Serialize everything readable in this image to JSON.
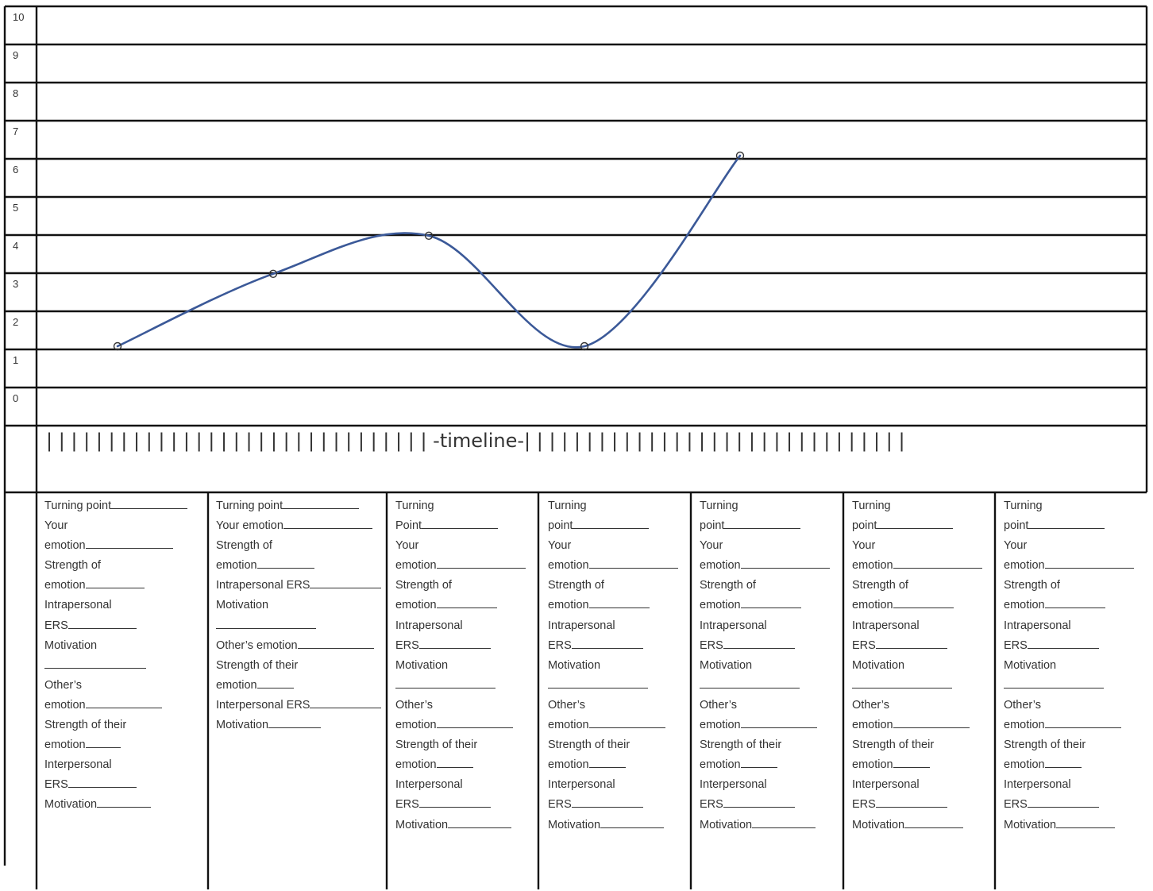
{
  "chart_data": {
    "type": "line",
    "ylim": [
      0,
      10
    ],
    "y_ticks": [
      "10",
      "9",
      "8",
      "7",
      "6",
      "5",
      "4",
      "3",
      "2",
      "1",
      "0"
    ],
    "series": [
      {
        "points": [
          [
            0,
            2
          ],
          [
            1,
            3.9
          ],
          [
            2,
            4.9
          ],
          [
            3,
            2
          ],
          [
            4,
            7
          ]
        ]
      }
    ],
    "line_color": "#3b5998",
    "grid": true
  },
  "timeline_label": "-timeline-",
  "columns": [
    {
      "lines": [
        {
          "t": "Turning point",
          "b": 96
        },
        {
          "t": "Your",
          "b": 0
        },
        {
          "t": "emotion",
          "b": 110
        },
        {
          "t": "Strength of",
          "b": 0
        },
        {
          "t": "emotion",
          "b": 74
        },
        {
          "t": "Intrapersonal",
          "b": 0
        },
        {
          "t": "ERS",
          "b": 86
        },
        {
          "t": "Motivation",
          "b": 0
        },
        {
          "t": "",
          "b": 128
        },
        {
          "t": "Other's",
          "b": 0
        },
        {
          "t": "emotion",
          "b": 96
        },
        {
          "t": "Strength of their",
          "b": 0
        },
        {
          "t": "emotion",
          "b": 44
        },
        {
          "t": "Interpersonal",
          "b": 0
        },
        {
          "t": "ERS",
          "b": 86
        },
        {
          "t": "Motivation",
          "b": 68
        }
      ]
    },
    {
      "lines": [
        {
          "t": "Turning point",
          "b": 96
        },
        {
          "t": "Your emotion",
          "b": 112
        },
        {
          "t": "Strength of",
          "b": 0
        },
        {
          "t": "emotion",
          "b": 72
        },
        {
          "t": "Intrapersonal ERS",
          "b": 90
        },
        {
          "t": "Motivation",
          "b": 0
        },
        {
          "t": "",
          "b": 126
        },
        {
          "t": "Other's emotion",
          "b": 96
        },
        {
          "t": "Strength of their",
          "b": 0
        },
        {
          "t": "emotion",
          "b": 46
        },
        {
          "t": "Interpersonal ERS",
          "b": 90
        },
        {
          "t": "Motivation",
          "b": 66
        }
      ]
    },
    {
      "lines": [
        {
          "t": "Turning",
          "b": 0
        },
        {
          "t": "Point",
          "b": 96
        },
        {
          "t": "Your",
          "b": 0
        },
        {
          "t": "emotion",
          "b": 112
        },
        {
          "t": "Strength of",
          "b": 0
        },
        {
          "t": "emotion",
          "b": 76
        },
        {
          "t": "Intrapersonal",
          "b": 0
        },
        {
          "t": "ERS",
          "b": 90
        },
        {
          "t": "Motivation",
          "b": 0
        },
        {
          "t": "",
          "b": 126
        },
        {
          "t": "Other's",
          "b": 0
        },
        {
          "t": "emotion",
          "b": 96
        },
        {
          "t": "Strength of their",
          "b": 0
        },
        {
          "t": "emotion",
          "b": 46
        },
        {
          "t": "Interpersonal",
          "b": 0
        },
        {
          "t": "ERS",
          "b": 90
        },
        {
          "t": "Motivation",
          "b": 80
        }
      ]
    },
    {
      "lines": [
        {
          "t": "Turning",
          "b": 0
        },
        {
          "t": "point",
          "b": 96
        },
        {
          "t": "Your",
          "b": 0
        },
        {
          "t": "emotion",
          "b": 112
        },
        {
          "t": "Strength of",
          "b": 0
        },
        {
          "t": "emotion",
          "b": 76
        },
        {
          "t": "Intrapersonal",
          "b": 0
        },
        {
          "t": "ERS",
          "b": 90
        },
        {
          "t": "Motivation",
          "b": 0
        },
        {
          "t": "",
          "b": 126
        },
        {
          "t": "Other's",
          "b": 0
        },
        {
          "t": "emotion",
          "b": 96
        },
        {
          "t": "Strength of their",
          "b": 0
        },
        {
          "t": "emotion",
          "b": 46
        },
        {
          "t": "Interpersonal",
          "b": 0
        },
        {
          "t": "ERS",
          "b": 90
        },
        {
          "t": "Motivation",
          "b": 80
        }
      ]
    },
    {
      "lines": [
        {
          "t": "Turning",
          "b": 0
        },
        {
          "t": "point",
          "b": 96
        },
        {
          "t": "Your",
          "b": 0
        },
        {
          "t": "emotion",
          "b": 112
        },
        {
          "t": "Strength of",
          "b": 0
        },
        {
          "t": "emotion",
          "b": 76
        },
        {
          "t": "Intrapersonal",
          "b": 0
        },
        {
          "t": "ERS",
          "b": 90
        },
        {
          "t": "Motivation",
          "b": 0
        },
        {
          "t": "",
          "b": 126
        },
        {
          "t": "Other's",
          "b": 0
        },
        {
          "t": "emotion",
          "b": 96
        },
        {
          "t": "Strength of their",
          "b": 0
        },
        {
          "t": "emotion",
          "b": 46
        },
        {
          "t": "Interpersonal",
          "b": 0
        },
        {
          "t": "ERS",
          "b": 90
        },
        {
          "t": "Motivation",
          "b": 80
        }
      ]
    },
    {
      "lines": [
        {
          "t": "Turning",
          "b": 0
        },
        {
          "t": "point",
          "b": 96
        },
        {
          "t": "Your",
          "b": 0
        },
        {
          "t": "emotion",
          "b": 112
        },
        {
          "t": "Strength of",
          "b": 0
        },
        {
          "t": "emotion",
          "b": 76
        },
        {
          "t": "Intrapersonal",
          "b": 0
        },
        {
          "t": "ERS",
          "b": 90
        },
        {
          "t": "Motivation",
          "b": 0
        },
        {
          "t": "",
          "b": 126
        },
        {
          "t": "Other's",
          "b": 0
        },
        {
          "t": "emotion",
          "b": 96
        },
        {
          "t": "Strength of their",
          "b": 0
        },
        {
          "t": "emotion",
          "b": 46
        },
        {
          "t": "Interpersonal",
          "b": 0
        },
        {
          "t": "ERS",
          "b": 90
        },
        {
          "t": "Motivation",
          "b": 74
        }
      ]
    },
    {
      "lines": [
        {
          "t": "Turning",
          "b": 0
        },
        {
          "t": "point",
          "b": 96
        },
        {
          "t": "Your",
          "b": 0
        },
        {
          "t": "emotion",
          "b": 112
        },
        {
          "t": "Strength of",
          "b": 0
        },
        {
          "t": "emotion",
          "b": 76
        },
        {
          "t": "Intrapersonal",
          "b": 0
        },
        {
          "t": "ERS",
          "b": 90
        },
        {
          "t": "Motivation",
          "b": 0
        },
        {
          "t": "",
          "b": 126
        },
        {
          "t": "Other's",
          "b": 0
        },
        {
          "t": "emotion",
          "b": 96
        },
        {
          "t": "Strength of their",
          "b": 0
        },
        {
          "t": "emotion",
          "b": 46
        },
        {
          "t": "Interpersonal",
          "b": 0
        },
        {
          "t": "ERS",
          "b": 90
        },
        {
          "t": "Motivation",
          "b": 74
        }
      ]
    }
  ]
}
